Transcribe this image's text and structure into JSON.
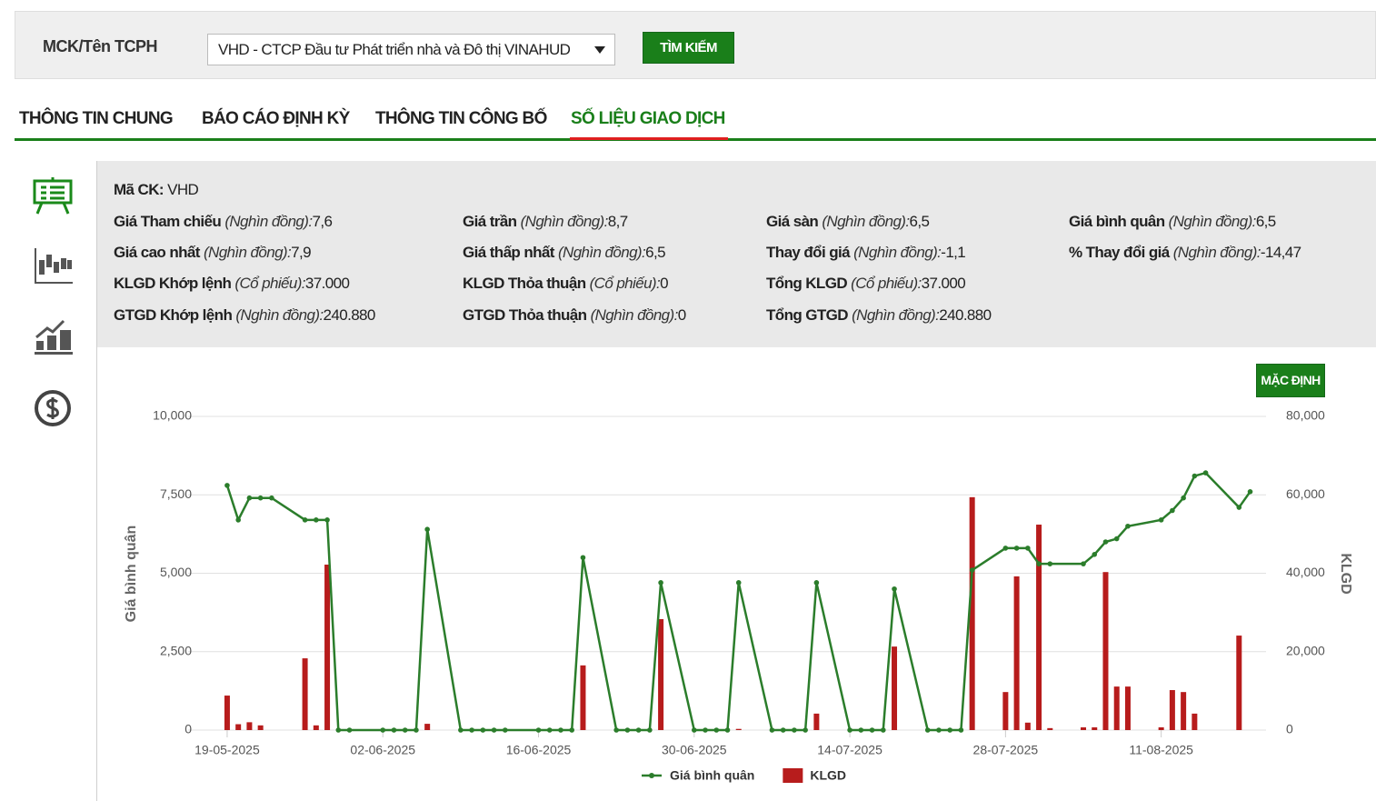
{
  "search": {
    "label": "MCK/Tên TCPH",
    "selected": "VHD - CTCP Đầu tư Phát triển nhà và Đô thị VINAHUD",
    "button": "TÌM KIẾM"
  },
  "tabs": [
    "THÔNG TIN CHUNG",
    "BÁO CÁO ĐỊNH KỲ",
    "THÔNG TIN CÔNG BỐ",
    "SỐ LIỆU GIAO DỊCH"
  ],
  "active_tab": 3,
  "stats": {
    "code_label": "Mã CK:",
    "code": "VHD",
    "rows": [
      [
        {
          "label": "Giá Tham chiếu",
          "unit": "(Nghìn đồng):",
          "value": "7,6"
        },
        {
          "label": "Giá trần",
          "unit": "(Nghìn đồng):",
          "value": "8,7"
        },
        {
          "label": "Giá sàn",
          "unit": "(Nghìn đồng):",
          "value": "6,5"
        },
        {
          "label": "Giá bình quân",
          "unit": "(Nghìn đồng):",
          "value": "6,5"
        }
      ],
      [
        {
          "label": "Giá cao nhất",
          "unit": "(Nghìn đồng):",
          "value": "7,9"
        },
        {
          "label": "Giá thấp nhất",
          "unit": "(Nghìn đồng):",
          "value": "6,5"
        },
        {
          "label": "Thay đổi giá",
          "unit": "(Nghìn đồng):",
          "value": "-1,1"
        },
        {
          "label": "% Thay đổi giá",
          "unit": "(Nghìn đồng):",
          "value": "-14,47"
        }
      ],
      [
        {
          "label": "KLGD Khớp lệnh",
          "unit": "(Cổ phiếu):",
          "value": "37.000"
        },
        {
          "label": "KLGD Thỏa thuận",
          "unit": "(Cổ phiếu):",
          "value": "0"
        },
        {
          "label": "Tổng KLGD",
          "unit": "(Cổ phiếu):",
          "value": "37.000"
        }
      ],
      [
        {
          "label": "GTGD Khớp lệnh",
          "unit": "(Nghìn đồng):",
          "value": "240.880"
        },
        {
          "label": "GTGD Thỏa thuận",
          "unit": "(Nghìn đồng):",
          "value": "0"
        },
        {
          "label": "Tổng GTGD",
          "unit": "(Nghìn đồng):",
          "value": "240.880"
        }
      ]
    ]
  },
  "reset_button": "MẶC ĐỊNH",
  "chart_data": {
    "type": "combo",
    "ylabel": "Giá bình quân",
    "y2label": "KLGD",
    "x": [
      "19-05-2025",
      "20-05-2025",
      "21-05-2025",
      "22-05-2025",
      "23-05-2025",
      "26-05-2025",
      "27-05-2025",
      "28-05-2025",
      "29-05-2025",
      "30-05-2025",
      "02-06-2025",
      "03-06-2025",
      "04-06-2025",
      "05-06-2025",
      "06-06-2025",
      "09-06-2025",
      "10-06-2025",
      "11-06-2025",
      "12-06-2025",
      "13-06-2025",
      "16-06-2025",
      "17-06-2025",
      "18-06-2025",
      "19-06-2025",
      "20-06-2025",
      "23-06-2025",
      "24-06-2025",
      "25-06-2025",
      "26-06-2025",
      "27-06-2025",
      "30-06-2025",
      "01-07-2025",
      "02-07-2025",
      "03-07-2025",
      "04-07-2025",
      "07-07-2025",
      "08-07-2025",
      "09-07-2025",
      "10-07-2025",
      "11-07-2025",
      "14-07-2025",
      "15-07-2025",
      "16-07-2025",
      "17-07-2025",
      "18-07-2025",
      "21-07-2025",
      "22-07-2025",
      "23-07-2025",
      "24-07-2025",
      "25-07-2025",
      "28-07-2025",
      "29-07-2025",
      "30-07-2025",
      "31-07-2025",
      "01-08-2025",
      "04-08-2025",
      "05-08-2025",
      "06-08-2025",
      "07-08-2025",
      "08-08-2025",
      "11-08-2025",
      "12-08-2025",
      "13-08-2025",
      "14-08-2025",
      "15-08-2025",
      "18-08-2025",
      "19-08-2025"
    ],
    "series": [
      {
        "name": "Giá bình quân",
        "type": "line",
        "color": "#2b7d2b",
        "values": [
          7800,
          6700,
          7400,
          7400,
          7400,
          6700,
          6700,
          6700,
          0,
          0,
          0,
          0,
          0,
          0,
          6400,
          0,
          0,
          0,
          0,
          0,
          0,
          0,
          0,
          0,
          5500,
          0,
          0,
          0,
          0,
          4700,
          0,
          0,
          0,
          0,
          4700,
          0,
          0,
          0,
          0,
          4700,
          0,
          0,
          0,
          0,
          4500,
          0,
          0,
          0,
          0,
          5100,
          5800,
          5800,
          5800,
          5300,
          5300,
          5300,
          5600,
          6000,
          6100,
          6500,
          6700,
          7000,
          7400,
          8100,
          8200,
          7100,
          7600
        ]
      },
      {
        "name": "KLGD",
        "type": "bar",
        "axis": "y2",
        "color": "#b71c1c",
        "values": [
          8800,
          1500,
          2000,
          1200,
          0,
          18300,
          1200,
          42200,
          0,
          0,
          0,
          0,
          0,
          0,
          1600,
          0,
          0,
          0,
          0,
          0,
          0,
          0,
          0,
          0,
          16500,
          0,
          0,
          0,
          0,
          28300,
          0,
          0,
          0,
          0,
          300,
          0,
          0,
          0,
          0,
          4200,
          0,
          0,
          0,
          0,
          21300,
          0,
          0,
          0,
          0,
          59400,
          9700,
          39200,
          1900,
          52400,
          500,
          700,
          700,
          40300,
          11100,
          11100,
          700,
          10200,
          9700,
          4200,
          0,
          24100,
          0
        ]
      }
    ],
    "xlim": [
      "15-05-2025",
      "21-08-2025"
    ],
    "xticks": [
      "19-05-2025",
      "02-06-2025",
      "16-06-2025",
      "30-06-2025",
      "14-07-2025",
      "28-07-2025",
      "11-08-2025"
    ],
    "ylim": [
      0,
      10000
    ],
    "yticks": [
      0,
      {
        "value": 2500,
        "label": "2,500"
      },
      {
        "value": 5000,
        "label": "5,000"
      },
      {
        "value": 7500,
        "label": "7,500"
      },
      {
        "value": 10000,
        "label": "10,000"
      }
    ],
    "y2lim": [
      0,
      80000
    ],
    "y2ticks": [
      0,
      {
        "value": 20000,
        "label": "20,000"
      },
      {
        "value": 40000,
        "label": "40,000"
      },
      {
        "value": 60000,
        "label": "60,000"
      },
      {
        "value": 80000,
        "label": "80,000"
      }
    ],
    "grid": true
  }
}
